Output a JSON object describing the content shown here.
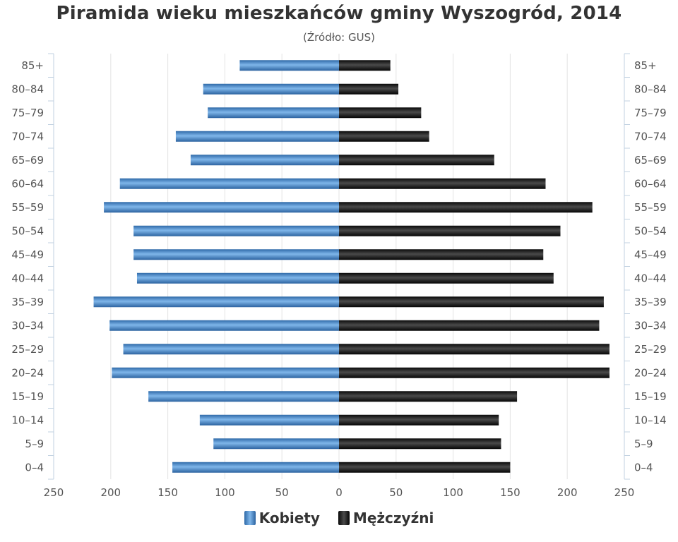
{
  "title": "Piramida wieku mieszkańców gminy Wyszogród, 2014",
  "subtitle": "(Źródło: GUS)",
  "colors": {
    "female": "#4a8fd2",
    "male": "#1a1a1a",
    "grid": "#e3e3e3",
    "axis": "#c0d0e0",
    "text": "#555555"
  },
  "chart_data": {
    "type": "bar",
    "orientation": "horizontal",
    "categories": [
      "85+",
      "80–84",
      "75–79",
      "70–74",
      "65–69",
      "60–64",
      "55–59",
      "50–54",
      "45–49",
      "40–44",
      "35–39",
      "30–34",
      "25–29",
      "20–24",
      "15–19",
      "10–14",
      "5–9",
      "0–4"
    ],
    "series": [
      {
        "name": "Kobiety",
        "side": "left",
        "values": [
          87,
          119,
          115,
          143,
          130,
          192,
          206,
          180,
          180,
          177,
          215,
          201,
          189,
          199,
          167,
          122,
          110,
          146
        ]
      },
      {
        "name": "Mężczyźni",
        "side": "right",
        "values": [
          45,
          52,
          72,
          79,
          136,
          181,
          222,
          194,
          179,
          188,
          232,
          228,
          237,
          237,
          156,
          140,
          142,
          150
        ]
      }
    ],
    "xlim": [
      -250,
      250
    ],
    "x_tick_labels": [
      "250",
      "200",
      "150",
      "100",
      "50",
      "0",
      "50",
      "100",
      "150",
      "200",
      "250"
    ],
    "grid": true,
    "legend_position": "bottom"
  }
}
